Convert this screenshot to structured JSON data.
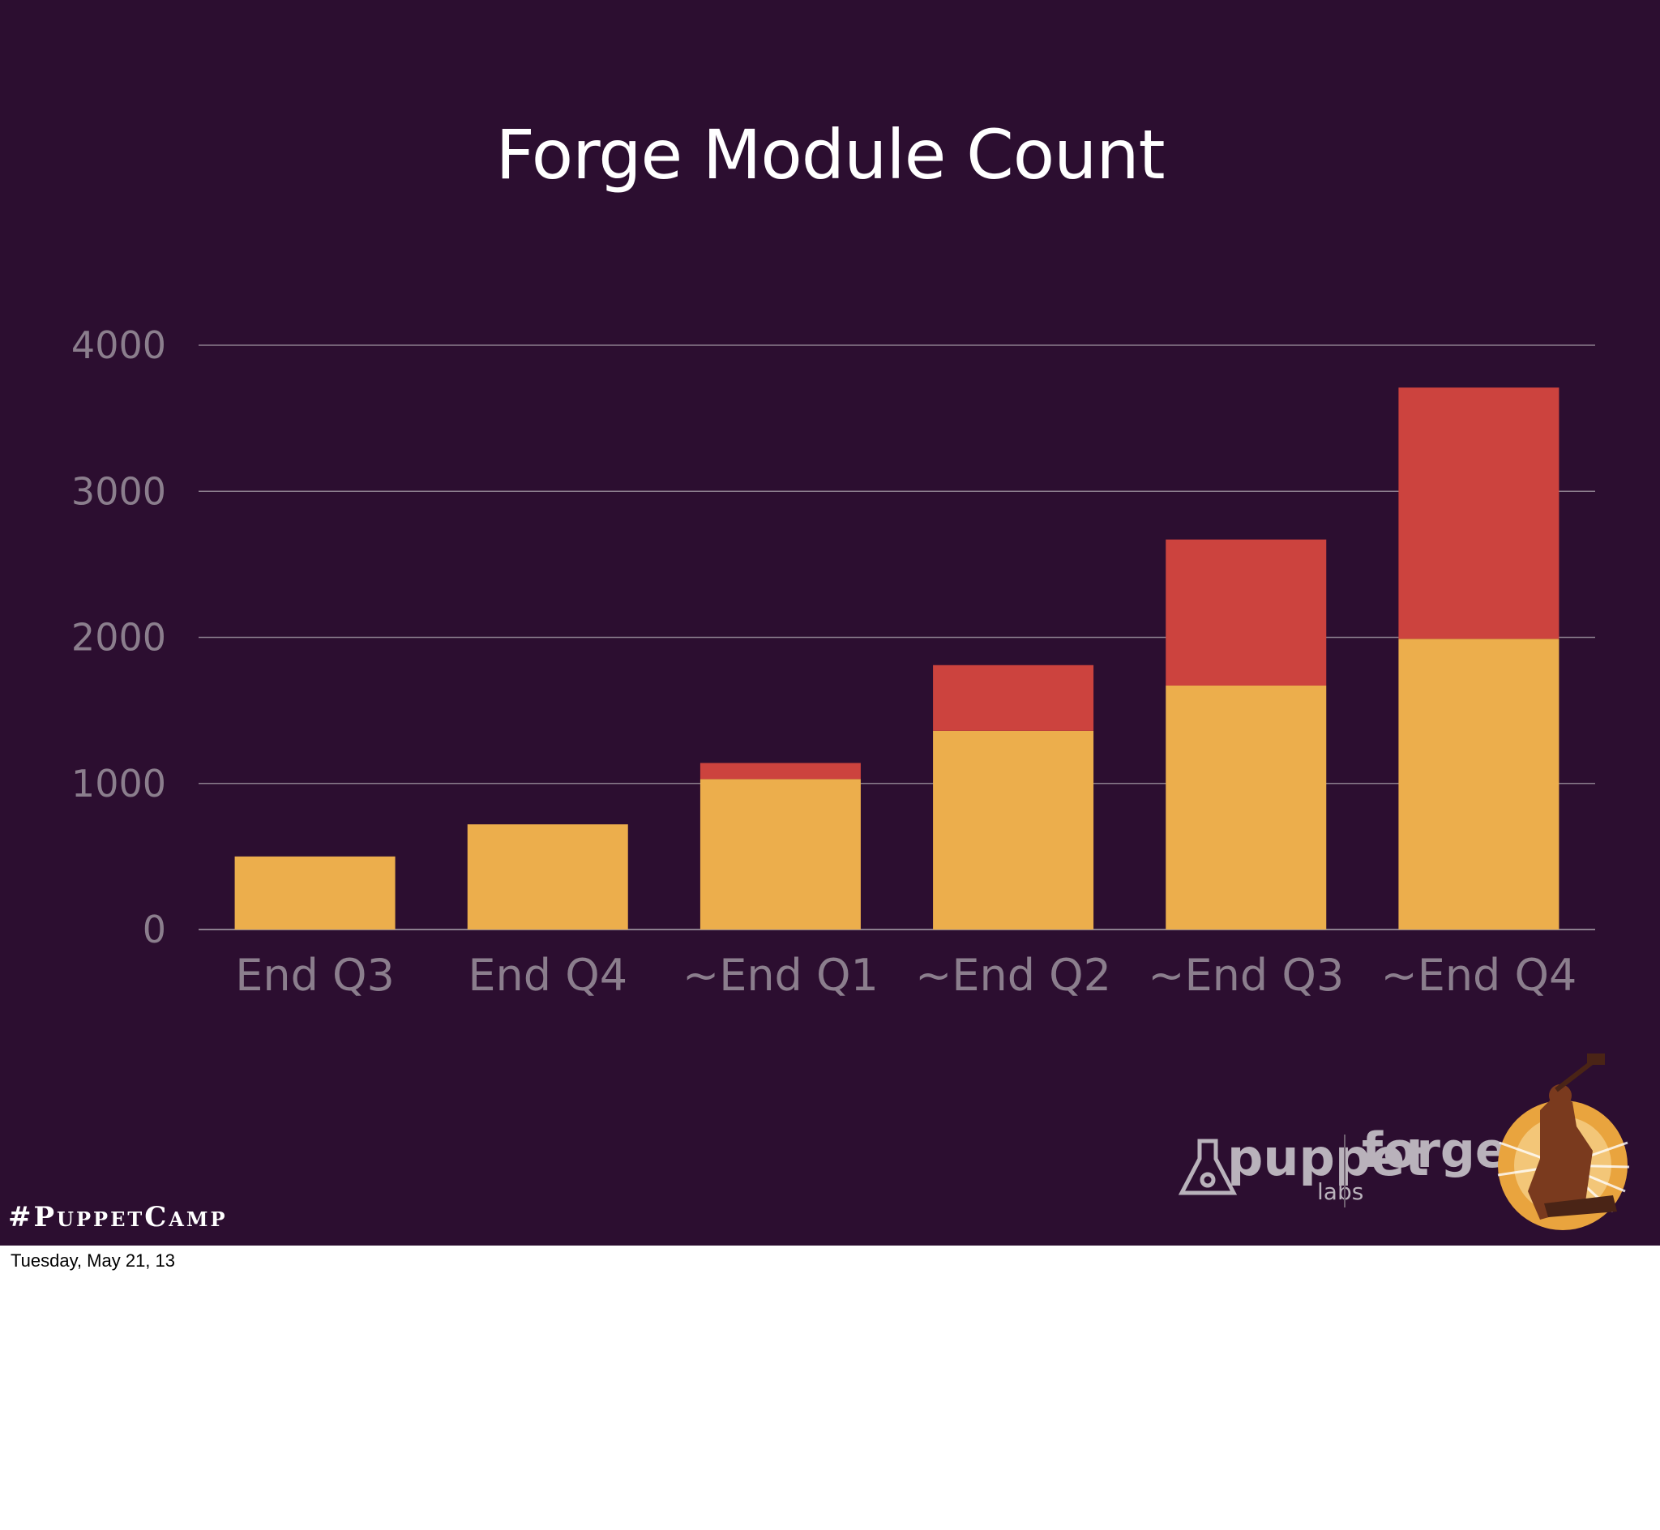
{
  "slide": {
    "hashtag": "#PuppetCamp",
    "logo": {
      "brand_text": "puppet",
      "brand_sub": "labs",
      "product_text": "forge"
    }
  },
  "footer": {
    "date": "Tuesday, May 21, 13"
  },
  "colors": {
    "background": "#2c0e30",
    "base_series": "#ecae4c",
    "top_series": "#cc433e",
    "gridline": "#8b7e8d",
    "label": "#8b7e8d"
  },
  "chart_data": {
    "type": "bar",
    "stacked": true,
    "title": "Forge Module Count",
    "xlabel": "",
    "ylabel": "",
    "categories": [
      "End Q3",
      "End Q4",
      "~End Q1",
      "~End Q2",
      "~End Q3",
      "~End Q4"
    ],
    "series": [
      {
        "values": [
          500,
          720,
          1030,
          1360,
          1670,
          1990
        ],
        "color": "#ecae4c"
      },
      {
        "values": [
          0,
          0,
          110,
          450,
          1000,
          1720
        ],
        "color": "#cc433e"
      }
    ],
    "ylim": [
      0,
      4000
    ],
    "yticks": [
      0,
      1000,
      2000,
      3000,
      4000
    ],
    "ytick_labels": [
      "0",
      "1000",
      "2000",
      "3000",
      "4000"
    ],
    "grid": true,
    "legend": "none"
  }
}
